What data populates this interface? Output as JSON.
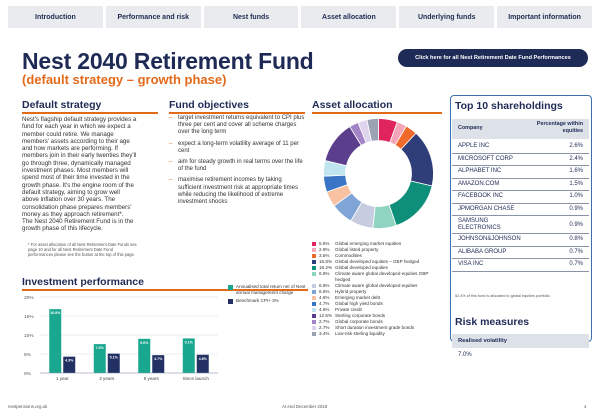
{
  "nav": {
    "tabs": [
      "Introduction",
      "Performance and risk",
      "Nest funds",
      "Asset allocation",
      "Underlying funds",
      "Important information"
    ]
  },
  "header": {
    "title": "Nest 2040 Retirement Fund",
    "subtitle": "(default strategy – growth phase)",
    "cta_label": "Click here for all Nest Retirement Date Fund Performances"
  },
  "default_strategy": {
    "title": "Default strategy",
    "lines": [
      "Nest's flagship default strategy provides a",
      "fund for each year in which we expect a",
      "member could retire. We manage",
      "members' assets according to their age",
      "and how markets are performing. If",
      "members join in their early twenties they'll",
      "go through three, dynamically managed",
      "investment phases. Most members will",
      "spend most of their time invested in the",
      "growth phase. It's the engine room of the",
      "default strategy, aiming to grow well",
      "above inflation over 30 years. The",
      "consolidation phase prepares members'",
      "money as they approach retirement*.",
      "The Nest 2040 Retirement Fund is in the",
      "growth phase of this lifecycle."
    ],
    "footnote": [
      "* For asset allocation of all Nest Retirement Date Funds see",
      "page 10 and for all Nest Retirement Date Fund",
      "performances please see the button at the top of this page."
    ]
  },
  "fund_objectives": {
    "title": "Fund objectives",
    "items": [
      "target investment returns equivalent to CPI plus three per cent and cover all scheme charges over the long term",
      "expect a long-term volatility average of 11 per cent",
      "aim for steady growth in real terms over the life of the fund",
      "maximise retirement incomes by taking sufficient investment risk at appropriate times while reducing the likelihood of extreme investment shocks"
    ]
  },
  "asset_allocation": {
    "title": "Asset allocation",
    "items": [
      {
        "pct": "5.6%",
        "name": "Global emerging market equities",
        "color": "#e0245e",
        "value": 5.6
      },
      {
        "pct": "2.9%",
        "name": "Global listed property",
        "color": "#f4a6b8",
        "value": 2.9
      },
      {
        "pct": "3.5%",
        "name": "Commodities",
        "color": "#f06a2b",
        "value": 3.5
      },
      {
        "pct": "16.8%",
        "name": "Global developed equities – GBP hedged",
        "color": "#2f3e78",
        "value": 16.8
      },
      {
        "pct": "16.2%",
        "name": "Global developed equities",
        "color": "#0d8f7a",
        "value": 16.2
      },
      {
        "pct": "6.9%",
        "name": "Climate aware global developed equities GBP hedged",
        "color": "#8fd3c1",
        "value": 6.9
      },
      {
        "pct": "6.8%",
        "name": "Climate aware global developed equities",
        "color": "#c7cce0",
        "value": 6.8
      },
      {
        "pct": "6.6%",
        "name": "Hybrid property",
        "color": "#7fa5d6",
        "value": 6.6
      },
      {
        "pct": "4.6%",
        "name": "Emerging market debt",
        "color": "#f7c1a2",
        "value": 4.6
      },
      {
        "pct": "4.7%",
        "name": "Global high yield bonds",
        "color": "#3975c4",
        "value": 4.7
      },
      {
        "pct": "4.6%",
        "name": "Private credit",
        "color": "#bfe6f0",
        "value": 4.6
      },
      {
        "pct": "12.5%",
        "name": "Sterling corporate bonds",
        "color": "#5b3f8c",
        "value": 12.5
      },
      {
        "pct": "2.7%",
        "name": "Global corporate bonds",
        "color": "#a284c7",
        "value": 2.7
      },
      {
        "pct": "2.7%",
        "name": "Short duration investment grade bonds",
        "color": "#ded4ee",
        "value": 2.7
      },
      {
        "pct": "3.4%",
        "name": "Low-risk sterling liquidity",
        "color": "#9aa2b4",
        "value": 3.4
      }
    ]
  },
  "top10": {
    "title": "Top 10 shareholdings",
    "col_company": "Company",
    "col_pct": "Percentage within equities",
    "rows": [
      {
        "company": "APPLE INC",
        "pct": "2.6%"
      },
      {
        "company": "MICROSOFT CORP",
        "pct": "2.4%"
      },
      {
        "company": "ALPHABET INC",
        "pct": "1.6%"
      },
      {
        "company": "AMAZON.COM",
        "pct": "1.5%"
      },
      {
        "company": "FACEBOOK INC",
        "pct": "1.0%"
      },
      {
        "company": "JPMORGAN CHASE",
        "pct": "0.9%"
      },
      {
        "company": "SAMSUNG ELECTRONICS",
        "pct": "0.9%"
      },
      {
        "company": "JOHNSON&JOHNSON",
        "pct": "0.8%"
      },
      {
        "company": "ALIBABA GROUP",
        "pct": "0.7%"
      },
      {
        "company": "VISA INC",
        "pct": "0.7%"
      }
    ],
    "note": "52.4% of this fund is allocated to global equities portfolio."
  },
  "risk": {
    "title": "Risk measures",
    "label": "Realised volatility",
    "value": "7.0%"
  },
  "performance": {
    "title": "Investment performance",
    "legend": [
      {
        "label": "Annualised total return net of Nest annual management charge",
        "color": "#1aa78f"
      },
      {
        "label": "Benchmark CPI+ 3%",
        "color": "#233064"
      }
    ]
  },
  "chart_data": {
    "type": "bar",
    "categories": [
      "1 year",
      "3 years",
      "5 years",
      "Since launch"
    ],
    "series": [
      {
        "values": [
          16.8,
          7.6,
          9.0,
          9.1
        ],
        "color": "#1aa78f"
      },
      {
        "values": [
          4.3,
          5.1,
          4.7,
          4.8
        ],
        "color": "#233064"
      }
    ],
    "value_labels": [
      [
        "16.8%",
        "7.6%",
        "9.0%",
        "9.1%"
      ],
      [
        "4.3%",
        "5.1%",
        "4.7%",
        "4.8%"
      ]
    ],
    "ylim": [
      0,
      20
    ],
    "ytick_labels": [
      "0%",
      "5%",
      "10%",
      "15%",
      "20%"
    ]
  },
  "footer": {
    "left": "nestpensions.org.uk",
    "center": "At end December 2019",
    "right": "4"
  }
}
